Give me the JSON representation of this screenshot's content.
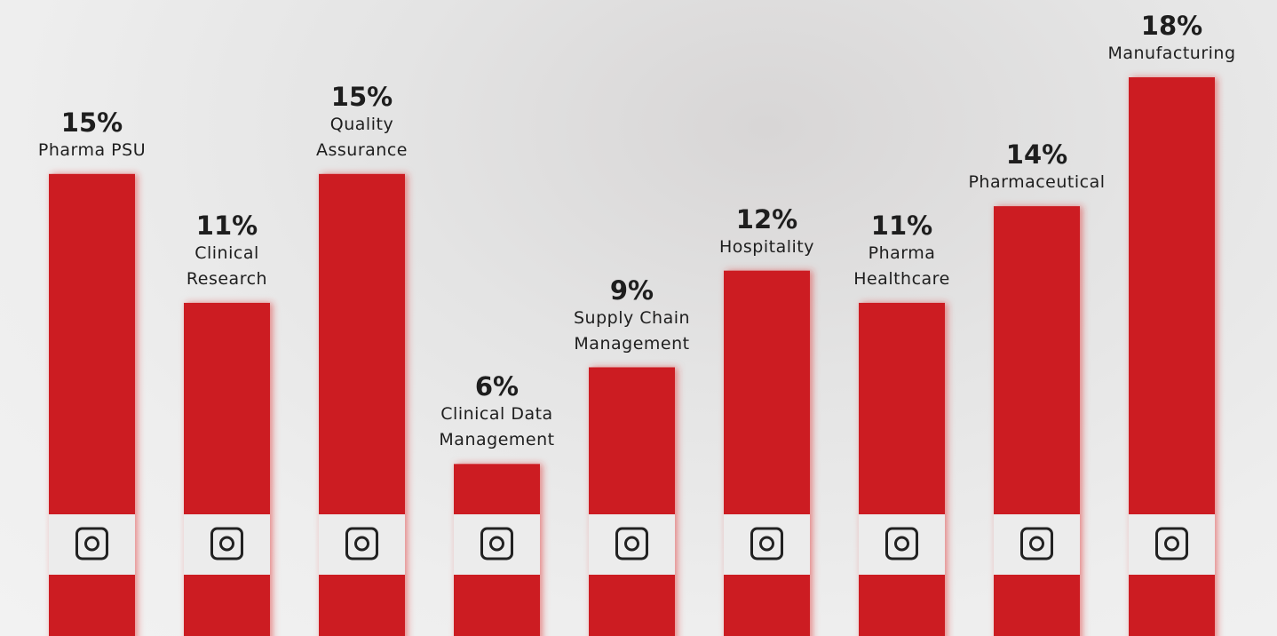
{
  "chart_data": {
    "type": "bar",
    "categories": [
      "Pharma PSU",
      "Clinical\nResearch",
      "Quality\nAssurance",
      "Clinical Data\nManagement",
      "Supply Chain\nManagement",
      "Hospitality",
      "Pharma\nHealthcare",
      "Pharmaceutical",
      "Manufacturing"
    ],
    "values": [
      15,
      11,
      15,
      6,
      9,
      12,
      11,
      14,
      18
    ],
    "value_labels": [
      "15%",
      "11%",
      "15%",
      "6%",
      "9%",
      "12%",
      "11%",
      "14%",
      "18%"
    ],
    "color": "#cc1f24"
  }
}
